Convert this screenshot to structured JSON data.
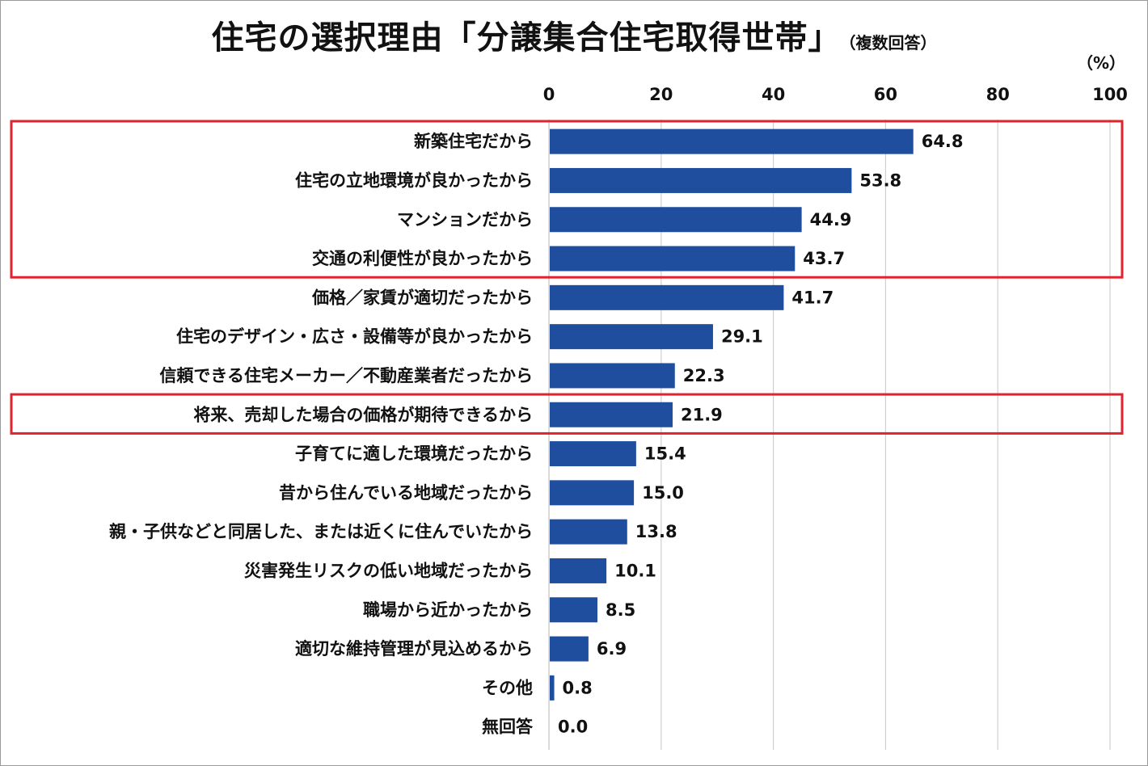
{
  "chart_data": {
    "type": "bar",
    "orientation": "horizontal",
    "title": "住宅の選択理由「分譲集合住宅取得世帯」",
    "subtitle": "（複数回答）",
    "unit": "（%）",
    "xlim": [
      0,
      100
    ],
    "ticks": [
      0,
      20,
      40,
      60,
      80,
      100
    ],
    "grid": true,
    "bar_color": "#1f4e9e",
    "highlight_color": "#e0232e",
    "categories": [
      "新築住宅だから",
      "住宅の立地環境が良かったから",
      "マンションだから",
      "交通の利便性が良かったから",
      "価格／家賃が適切だったから",
      "住宅のデザイン・広さ・設備等が良かったから",
      "信頼できる住宅メーカー／不動産業者だったから",
      "将来、売却した場合の価格が期待できるから",
      "子育てに適した環境だったから",
      "昔から住んでいる地域だったから",
      "親・子供などと同居した、または近くに住んでいたから",
      "災害発生リスクの低い地域だったから",
      "職場から近かったから",
      "適切な維持管理が見込めるから",
      "その他",
      "無回答"
    ],
    "values": [
      64.8,
      53.8,
      44.9,
      43.7,
      41.7,
      29.1,
      22.3,
      21.9,
      15.4,
      15.0,
      13.8,
      10.1,
      8.5,
      6.9,
      0.8,
      0.0
    ],
    "value_labels": [
      "64.8",
      "53.8",
      "44.9",
      "43.7",
      "41.7",
      "29.1",
      "22.3",
      "21.9",
      "15.4",
      "15.0",
      "13.8",
      "10.1",
      "8.5",
      "6.9",
      "0.8",
      "0.0"
    ],
    "highlight_groups": [
      [
        0,
        3
      ],
      [
        7,
        7
      ]
    ]
  }
}
